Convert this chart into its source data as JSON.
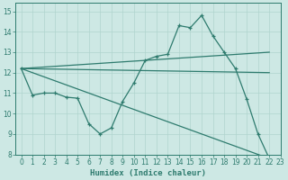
{
  "xlabel": "Humidex (Indice chaleur)",
  "bg_color": "#cde8e4",
  "line_color": "#2e7b6e",
  "grid_color": "#b0d4ce",
  "xlim": [
    -0.5,
    23
  ],
  "ylim": [
    8,
    15.4
  ],
  "yticks": [
    8,
    9,
    10,
    11,
    12,
    13,
    14,
    15
  ],
  "xticks": [
    0,
    1,
    2,
    3,
    4,
    5,
    6,
    7,
    8,
    9,
    10,
    11,
    12,
    13,
    14,
    15,
    16,
    17,
    18,
    19,
    20,
    21,
    22,
    23
  ],
  "lines": [
    {
      "x": [
        0,
        1,
        2,
        3,
        4,
        5,
        6,
        7,
        8,
        9,
        10,
        11,
        12,
        13,
        14,
        15,
        16,
        17,
        18,
        19,
        20,
        21,
        22
      ],
      "y": [
        12.2,
        10.9,
        11.0,
        11.0,
        10.8,
        10.75,
        9.5,
        9.0,
        9.3,
        10.6,
        11.5,
        12.6,
        12.8,
        12.9,
        14.3,
        14.2,
        14.8,
        13.8,
        13.0,
        12.2,
        10.7,
        9.0,
        7.8
      ],
      "marker": true
    },
    {
      "x": [
        0,
        22
      ],
      "y": [
        12.2,
        7.8
      ],
      "marker": false
    },
    {
      "x": [
        0,
        22
      ],
      "y": [
        12.2,
        13.0
      ],
      "marker": false
    },
    {
      "x": [
        0,
        22
      ],
      "y": [
        12.2,
        12.0
      ],
      "marker": false
    }
  ]
}
